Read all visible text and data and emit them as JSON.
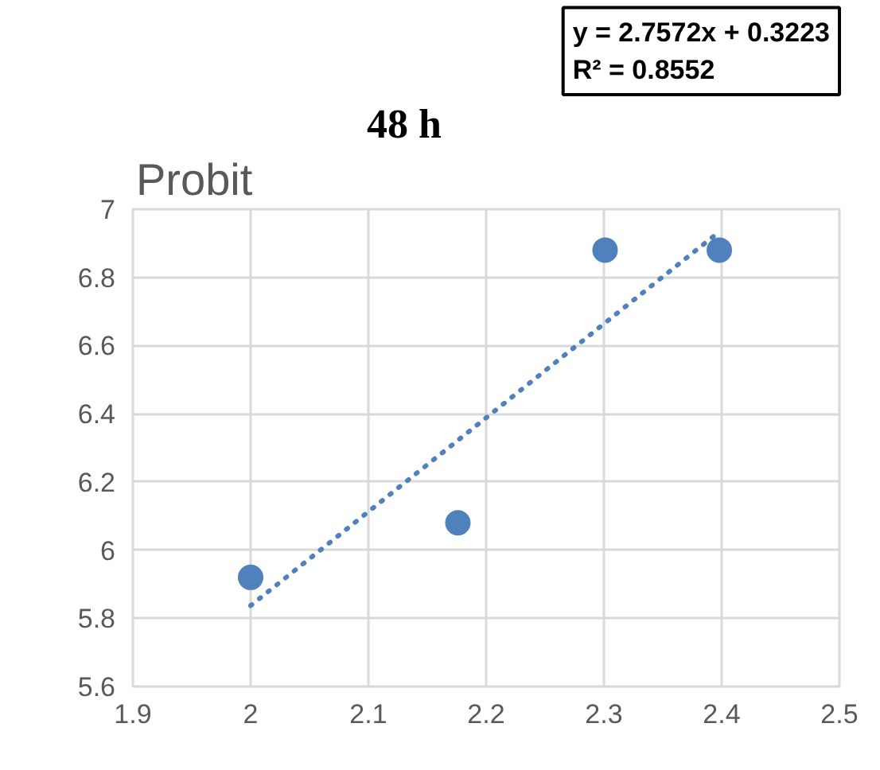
{
  "chart_data": {
    "type": "scatter",
    "title": "48 h",
    "ylabel": "Probit",
    "annotations": [
      "y = 2.7572x + 0.3223",
      "R² = 0.8552"
    ],
    "xlim": [
      1.9,
      2.5
    ],
    "xticks": [
      1.9,
      2,
      2.1,
      2.2,
      2.3,
      2.4,
      2.5
    ],
    "ylim": [
      5.6,
      7
    ],
    "yticks": [
      5.6,
      5.8,
      6,
      6.2,
      6.4,
      6.6,
      6.8,
      7
    ],
    "grid": true,
    "marker": "circle",
    "series": [
      {
        "color": "#4f81bd",
        "x": [
          2,
          2.176,
          2.301,
          2.398
        ],
        "values": [
          5.92,
          6.08,
          6.88,
          6.88
        ]
      },
      {
        "type": "line",
        "color": "#4f81bd",
        "line_style": "dotted",
        "marker": "none",
        "x": [
          2,
          2.398
        ],
        "values": [
          5.837,
          6.934
        ]
      }
    ]
  }
}
